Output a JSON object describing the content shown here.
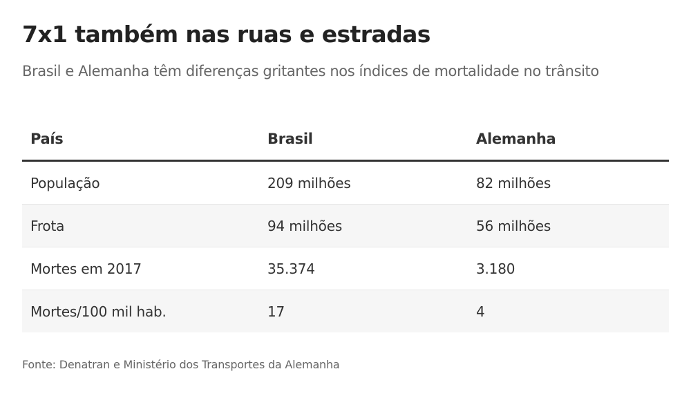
{
  "chart_data": {
    "type": "table",
    "title": "7x1 também nas ruas e estradas",
    "subtitle": "Brasil e Alemanha têm diferenças gritantes nos índices de mortalidade no trânsito",
    "columns": [
      "País",
      "Brasil",
      "Alemanha"
    ],
    "rows": [
      [
        "População",
        "209 milhões",
        "82 milhões"
      ],
      [
        "Frota",
        "94 milhões",
        "56 milhões"
      ],
      [
        "Mortes em 2017",
        "35.374",
        "3.180"
      ],
      [
        "Mortes/100 mil hab.",
        "17",
        "4"
      ]
    ],
    "source": "Fonte: Denatran e Ministério dos Transportes da Alemanha"
  }
}
